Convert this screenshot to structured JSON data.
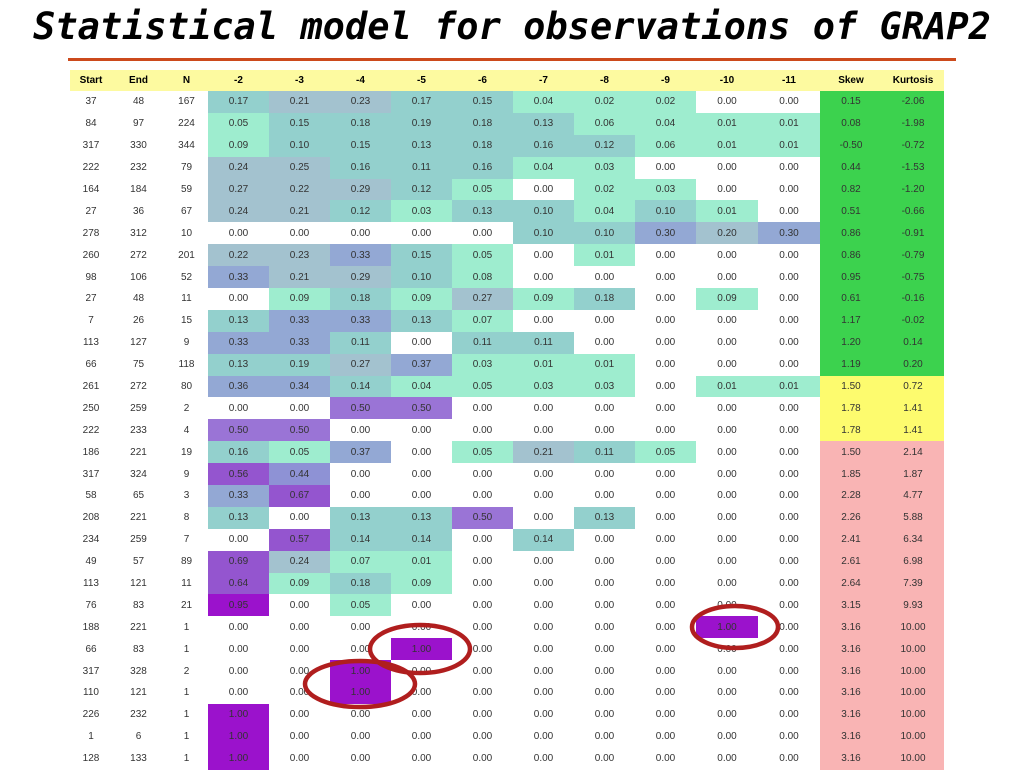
{
  "title": "Statistical model for observations of GRAP2",
  "colors": {
    "rule": "#cc4a1c",
    "header_bg": "#fdfaa0",
    "skew_green": "#3cd24e",
    "skew_yellow": "#fdfb6e",
    "skew_pink": "#f9b4b4",
    "circle": "#b01e1e"
  },
  "table": {
    "headers": [
      "Start",
      "End",
      "N",
      "-2",
      "-3",
      "-4",
      "-5",
      "-6",
      "-7",
      "-8",
      "-9",
      "-10",
      "-11",
      "Skew",
      "Kurtosis"
    ],
    "rows": [
      [
        "37",
        "48",
        "167",
        "0.17",
        "0.21",
        "0.23",
        "0.17",
        "0.15",
        "0.04",
        "0.02",
        "0.02",
        "0.00",
        "0.00",
        "0.15",
        "-2.06"
      ],
      [
        "84",
        "97",
        "224",
        "0.05",
        "0.15",
        "0.18",
        "0.19",
        "0.18",
        "0.13",
        "0.06",
        "0.04",
        "0.01",
        "0.01",
        "0.08",
        "-1.98"
      ],
      [
        "317",
        "330",
        "344",
        "0.09",
        "0.10",
        "0.15",
        "0.13",
        "0.18",
        "0.16",
        "0.12",
        "0.06",
        "0.01",
        "0.01",
        "-0.50",
        "-0.72"
      ],
      [
        "222",
        "232",
        "79",
        "0.24",
        "0.25",
        "0.16",
        "0.11",
        "0.16",
        "0.04",
        "0.03",
        "0.00",
        "0.00",
        "0.00",
        "0.44",
        "-1.53"
      ],
      [
        "164",
        "184",
        "59",
        "0.27",
        "0.22",
        "0.29",
        "0.12",
        "0.05",
        "0.00",
        "0.02",
        "0.03",
        "0.00",
        "0.00",
        "0.82",
        "-1.20"
      ],
      [
        "27",
        "36",
        "67",
        "0.24",
        "0.21",
        "0.12",
        "0.03",
        "0.13",
        "0.10",
        "0.04",
        "0.10",
        "0.01",
        "0.00",
        "0.51",
        "-0.66"
      ],
      [
        "278",
        "312",
        "10",
        "0.00",
        "0.00",
        "0.00",
        "0.00",
        "0.00",
        "0.10",
        "0.10",
        "0.30",
        "0.20",
        "0.30",
        "0.86",
        "-0.91"
      ],
      [
        "260",
        "272",
        "201",
        "0.22",
        "0.23",
        "0.33",
        "0.15",
        "0.05",
        "0.00",
        "0.01",
        "0.00",
        "0.00",
        "0.00",
        "0.86",
        "-0.79"
      ],
      [
        "98",
        "106",
        "52",
        "0.33",
        "0.21",
        "0.29",
        "0.10",
        "0.08",
        "0.00",
        "0.00",
        "0.00",
        "0.00",
        "0.00",
        "0.95",
        "-0.75"
      ],
      [
        "27",
        "48",
        "11",
        "0.00",
        "0.09",
        "0.18",
        "0.09",
        "0.27",
        "0.09",
        "0.18",
        "0.00",
        "0.09",
        "0.00",
        "0.61",
        "-0.16"
      ],
      [
        "7",
        "26",
        "15",
        "0.13",
        "0.33",
        "0.33",
        "0.13",
        "0.07",
        "0.00",
        "0.00",
        "0.00",
        "0.00",
        "0.00",
        "1.17",
        "-0.02"
      ],
      [
        "113",
        "127",
        "9",
        "0.33",
        "0.33",
        "0.11",
        "0.00",
        "0.11",
        "0.11",
        "0.00",
        "0.00",
        "0.00",
        "0.00",
        "1.20",
        "0.14"
      ],
      [
        "66",
        "75",
        "118",
        "0.13",
        "0.19",
        "0.27",
        "0.37",
        "0.03",
        "0.01",
        "0.01",
        "0.00",
        "0.00",
        "0.00",
        "1.19",
        "0.20"
      ],
      [
        "261",
        "272",
        "80",
        "0.36",
        "0.34",
        "0.14",
        "0.04",
        "0.05",
        "0.03",
        "0.03",
        "0.00",
        "0.01",
        "0.01",
        "1.50",
        "0.72"
      ],
      [
        "250",
        "259",
        "2",
        "0.00",
        "0.00",
        "0.50",
        "0.50",
        "0.00",
        "0.00",
        "0.00",
        "0.00",
        "0.00",
        "0.00",
        "1.78",
        "1.41"
      ],
      [
        "222",
        "233",
        "4",
        "0.50",
        "0.50",
        "0.00",
        "0.00",
        "0.00",
        "0.00",
        "0.00",
        "0.00",
        "0.00",
        "0.00",
        "1.78",
        "1.41"
      ],
      [
        "186",
        "221",
        "19",
        "0.16",
        "0.05",
        "0.37",
        "0.00",
        "0.05",
        "0.21",
        "0.11",
        "0.05",
        "0.00",
        "0.00",
        "1.50",
        "2.14"
      ],
      [
        "317",
        "324",
        "9",
        "0.56",
        "0.44",
        "0.00",
        "0.00",
        "0.00",
        "0.00",
        "0.00",
        "0.00",
        "0.00",
        "0.00",
        "1.85",
        "1.87"
      ],
      [
        "58",
        "65",
        "3",
        "0.33",
        "0.67",
        "0.00",
        "0.00",
        "0.00",
        "0.00",
        "0.00",
        "0.00",
        "0.00",
        "0.00",
        "2.28",
        "4.77"
      ],
      [
        "208",
        "221",
        "8",
        "0.13",
        "0.00",
        "0.13",
        "0.13",
        "0.50",
        "0.00",
        "0.13",
        "0.00",
        "0.00",
        "0.00",
        "2.26",
        "5.88"
      ],
      [
        "234",
        "259",
        "7",
        "0.00",
        "0.57",
        "0.14",
        "0.14",
        "0.00",
        "0.14",
        "0.00",
        "0.00",
        "0.00",
        "0.00",
        "2.41",
        "6.34"
      ],
      [
        "49",
        "57",
        "89",
        "0.69",
        "0.24",
        "0.07",
        "0.01",
        "0.00",
        "0.00",
        "0.00",
        "0.00",
        "0.00",
        "0.00",
        "2.61",
        "6.98"
      ],
      [
        "113",
        "121",
        "11",
        "0.64",
        "0.09",
        "0.18",
        "0.09",
        "0.00",
        "0.00",
        "0.00",
        "0.00",
        "0.00",
        "0.00",
        "2.64",
        "7.39"
      ],
      [
        "76",
        "83",
        "21",
        "0.95",
        "0.00",
        "0.05",
        "0.00",
        "0.00",
        "0.00",
        "0.00",
        "0.00",
        "0.00",
        "0.00",
        "3.15",
        "9.93"
      ],
      [
        "188",
        "221",
        "1",
        "0.00",
        "0.00",
        "0.00",
        "0.00",
        "0.00",
        "0.00",
        "0.00",
        "0.00",
        "1.00",
        "0.00",
        "3.16",
        "10.00"
      ],
      [
        "66",
        "83",
        "1",
        "0.00",
        "0.00",
        "0.00",
        "1.00",
        "0.00",
        "0.00",
        "0.00",
        "0.00",
        "0.00",
        "0.00",
        "3.16",
        "10.00"
      ],
      [
        "317",
        "328",
        "2",
        "0.00",
        "0.00",
        "1.00",
        "0.00",
        "0.00",
        "0.00",
        "0.00",
        "0.00",
        "0.00",
        "0.00",
        "3.16",
        "10.00"
      ],
      [
        "110",
        "121",
        "1",
        "0.00",
        "0.00",
        "1.00",
        "0.00",
        "0.00",
        "0.00",
        "0.00",
        "0.00",
        "0.00",
        "0.00",
        "3.16",
        "10.00"
      ],
      [
        "226",
        "232",
        "1",
        "1.00",
        "0.00",
        "0.00",
        "0.00",
        "0.00",
        "0.00",
        "0.00",
        "0.00",
        "0.00",
        "0.00",
        "3.16",
        "10.00"
      ],
      [
        "1",
        "6",
        "1",
        "1.00",
        "0.00",
        "0.00",
        "0.00",
        "0.00",
        "0.00",
        "0.00",
        "0.00",
        "0.00",
        "0.00",
        "3.16",
        "10.00"
      ],
      [
        "128",
        "133",
        "1",
        "1.00",
        "0.00",
        "0.00",
        "0.00",
        "0.00",
        "0.00",
        "0.00",
        "0.00",
        "0.00",
        "0.00",
        "3.16",
        "10.00"
      ]
    ]
  },
  "highlight_rows": [
    24,
    25,
    27
  ]
}
